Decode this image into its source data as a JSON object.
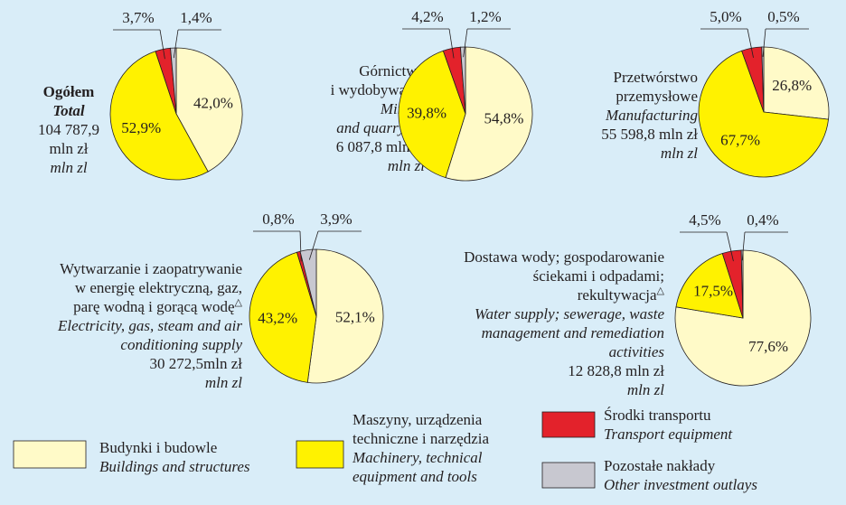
{
  "chart_data": [
    {
      "type": "pie",
      "title_lines": [
        {
          "text": "Ogółem",
          "style": "bold"
        },
        {
          "text": "Total",
          "style": "bold-italic"
        },
        {
          "text": "104 787,9",
          "style": "normal"
        },
        {
          "text": "mln zł",
          "style": "normal"
        },
        {
          "text": "mln zl",
          "style": "italic"
        }
      ],
      "values": [
        42.0,
        52.9,
        3.7,
        1.4
      ],
      "value_labels": [
        "42,0%",
        "52,9%",
        "3,7%",
        "1,4%"
      ]
    },
    {
      "type": "pie",
      "title_lines": [
        {
          "text": "Górnictwo",
          "style": "normal"
        },
        {
          "text": "i wydobywanie",
          "style": "normal"
        },
        {
          "text": "Mining",
          "style": "italic"
        },
        {
          "text": "and quarrying",
          "style": "italic"
        },
        {
          "text": "6 087,8 mln zł",
          "style": "normal"
        },
        {
          "text": "mln zl",
          "style": "italic"
        }
      ],
      "values": [
        54.8,
        39.8,
        4.2,
        1.2
      ],
      "value_labels": [
        "54,8%",
        "39,8%",
        "4,2%",
        "1,2%"
      ]
    },
    {
      "type": "pie",
      "title_lines": [
        {
          "text": "Przetwórstwo",
          "style": "normal"
        },
        {
          "text": "przemysłowe",
          "style": "normal"
        },
        {
          "text": "Manufacturing",
          "style": "italic"
        },
        {
          "text": "55 598,8 mln zł",
          "style": "normal"
        },
        {
          "text": "mln zl",
          "style": "italic"
        }
      ],
      "values": [
        26.8,
        67.7,
        5.0,
        0.5
      ],
      "value_labels": [
        "26,8%",
        "67,7%",
        "5,0%",
        "0,5%"
      ]
    },
    {
      "type": "pie",
      "title_lines": [
        {
          "text": "Wytwarzanie i zaopatrywanie",
          "style": "normal"
        },
        {
          "text": "w energię elektryczną, gaz,",
          "style": "normal"
        },
        {
          "text": "parę wodną i gorącą wodę",
          "style": "normal",
          "mark": "△"
        },
        {
          "text": "Electricity, gas, steam and air",
          "style": "italic"
        },
        {
          "text": "conditioning supply",
          "style": "italic"
        },
        {
          "text": "30 272,5mln zł",
          "style": "normal"
        },
        {
          "text": "mln zl",
          "style": "italic"
        }
      ],
      "values": [
        52.1,
        43.2,
        0.8,
        3.9
      ],
      "value_labels": [
        "52,1%",
        "43,2%",
        "0,8%",
        "3,9%"
      ]
    },
    {
      "type": "pie",
      "title_lines": [
        {
          "text": "Dostawa wody; gospodarowanie",
          "style": "normal"
        },
        {
          "text": "ściekami i odpadami;",
          "style": "normal"
        },
        {
          "text": "rekultywacja",
          "style": "normal",
          "mark": "△"
        },
        {
          "text": "Water supply; sewerage, waste",
          "style": "italic"
        },
        {
          "text": "management and remediation",
          "style": "italic"
        },
        {
          "text": "activities",
          "style": "italic"
        },
        {
          "text": "12 828,8 mln zł",
          "style": "normal"
        },
        {
          "text": "mln zl",
          "style": "italic"
        }
      ],
      "values": [
        77.6,
        17.5,
        4.5,
        0.4
      ],
      "value_labels": [
        "77,6%",
        "17,5%",
        "4,5%",
        "0,4%"
      ]
    }
  ],
  "legend": [
    {
      "label_lines": [
        "Budynki i budowle"
      ],
      "label_en_lines": [
        "Buildings and structures"
      ],
      "color": "#fffac8"
    },
    {
      "label_lines": [
        "Maszyny, urządzenia",
        "techniczne i narzędzia"
      ],
      "label_en_lines": [
        "Machinery, technical",
        "equipment and tools"
      ],
      "color": "#fff200"
    },
    {
      "label_lines": [
        "Środki transportu"
      ],
      "label_en_lines": [
        "Transport equipment"
      ],
      "color": "#e3222b"
    },
    {
      "label_lines": [
        "Pozostałe nakłady"
      ],
      "label_en_lines": [
        "Other investment outlays"
      ],
      "color": "#c8c8d0"
    }
  ]
}
